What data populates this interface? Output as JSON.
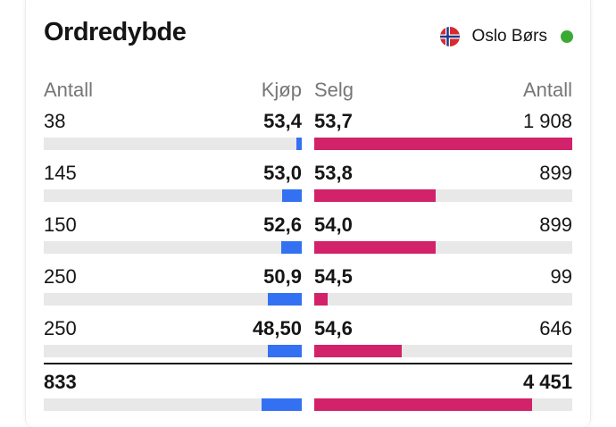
{
  "title": "Ordredybde",
  "exchange": {
    "name": "Oslo Børs",
    "flag_icon": "norway-flag-icon",
    "status_color": "#3aaa35"
  },
  "headers": {
    "left_qty": "Antall",
    "bid": "Kjøp",
    "ask": "Selg",
    "right_qty": "Antall"
  },
  "colors": {
    "bid_bar": "#3471f2",
    "ask_bar": "#d1226a",
    "track": "#e8e8e8"
  },
  "rows": [
    {
      "bid_qty": "38",
      "bid_price": "53,4",
      "ask_price": "53,7",
      "ask_qty": "1 908",
      "bid_fill": 0.02,
      "ask_fill": 1.0
    },
    {
      "bid_qty": "145",
      "bid_price": "53,0",
      "ask_price": "53,8",
      "ask_qty": "899",
      "bid_fill": 0.076,
      "ask_fill": 0.471
    },
    {
      "bid_qty": "150",
      "bid_price": "52,6",
      "ask_price": "54,0",
      "ask_qty": "899",
      "bid_fill": 0.079,
      "ask_fill": 0.471
    },
    {
      "bid_qty": "250",
      "bid_price": "50,9",
      "ask_price": "54,5",
      "ask_qty": "99",
      "bid_fill": 0.131,
      "ask_fill": 0.052
    },
    {
      "bid_qty": "250",
      "bid_price": "48,50",
      "ask_price": "54,6",
      "ask_qty": "646",
      "bid_fill": 0.131,
      "ask_fill": 0.339
    }
  ],
  "totals": {
    "bid_qty": "833",
    "ask_qty": "4 451",
    "bid_fill": 0.156,
    "ask_fill": 0.845
  }
}
